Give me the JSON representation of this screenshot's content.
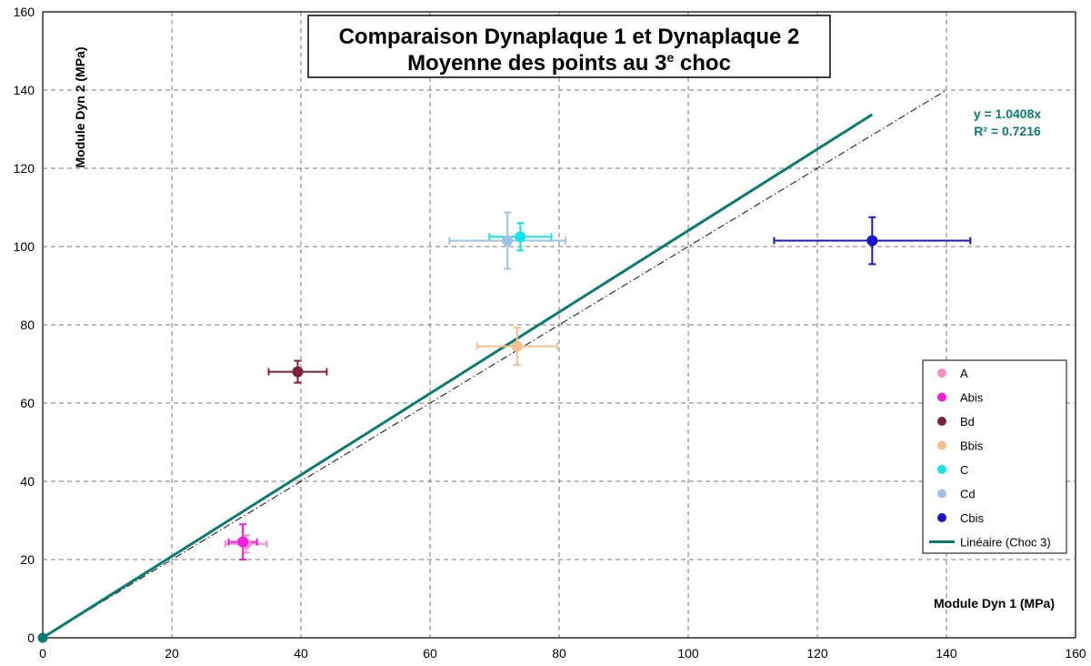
{
  "chart_data": {
    "type": "scatter",
    "title_line1": "Comparaison Dynaplaque 1 et Dynaplaque 2",
    "title_line2_main": "Moyenne des points au 3",
    "title_line2_sup": "e",
    "title_line2_end": " choc",
    "xlabel": "Module Dyn 1 (MPa)",
    "ylabel": "Module Dyn 2 (MPa)",
    "xlim": [
      0,
      160
    ],
    "ylim": [
      0,
      160
    ],
    "xticks": [
      0,
      20,
      40,
      60,
      80,
      100,
      120,
      140,
      160
    ],
    "yticks": [
      0,
      20,
      40,
      60,
      80,
      100,
      120,
      140,
      160
    ],
    "grid": true,
    "legend_position": "right",
    "series": [
      {
        "name": "A",
        "color": "#f48fc8",
        "points": [
          {
            "x": 31.5,
            "y": 24,
            "xerr": 3.2,
            "yerr": 2.2
          }
        ]
      },
      {
        "name": "Abis",
        "color": "#f01edc",
        "points": [
          {
            "x": 31,
            "y": 24.5,
            "xerr": 2.2,
            "yerr": 4.5
          }
        ]
      },
      {
        "name": "Bd",
        "color": "#7b2338",
        "points": [
          {
            "x": 39.5,
            "y": 68,
            "xerr": 4.5,
            "yerr": 2.8
          }
        ]
      },
      {
        "name": "Bbis",
        "color": "#f5c08e",
        "points": [
          {
            "x": 73.5,
            "y": 74.5,
            "xerr": 6.2,
            "yerr": 4.8
          }
        ]
      },
      {
        "name": "C",
        "color": "#12e5e5",
        "points": [
          {
            "x": 74,
            "y": 102.5,
            "xerr": 4.8,
            "yerr": 3.5
          }
        ]
      },
      {
        "name": "Cd",
        "color": "#9ec3e6",
        "points": [
          {
            "x": 72,
            "y": 101.5,
            "xerr": 9,
            "yerr": 7.2
          }
        ]
      },
      {
        "name": "Cbis",
        "color": "#1717c8",
        "points": [
          {
            "x": 128.5,
            "y": 101.5,
            "xerr": 15.2,
            "yerr": 6
          }
        ]
      }
    ],
    "trendline": {
      "name": "Linéaire (Choc 3)",
      "color": "#0b7a72",
      "slope": 1.0408,
      "x_range": [
        0,
        128.5
      ]
    },
    "reference_line": {
      "slope": 1,
      "x_range": [
        0,
        140
      ]
    },
    "equation": "y = 1.0408x",
    "r_squared": "R² = 0.7216",
    "origin_point": {
      "x": 0,
      "y": 0,
      "color": "#0b7a72"
    }
  }
}
